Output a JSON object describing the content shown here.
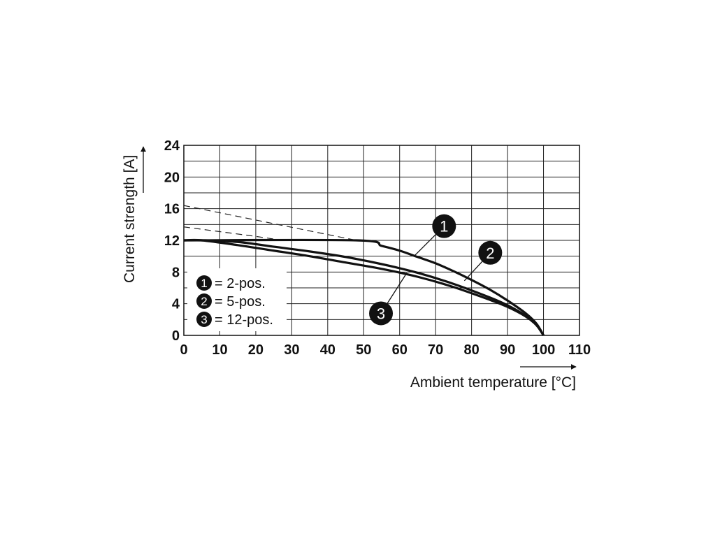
{
  "chart_data": {
    "type": "line",
    "xlabel": "Ambient temperature [°C]",
    "ylabel": "Current strength [A]",
    "xlim": [
      0,
      110
    ],
    "ylim": [
      0,
      24
    ],
    "xticks": [
      "0",
      "10",
      "20",
      "30",
      "40",
      "50",
      "60",
      "70",
      "80",
      "90",
      "100",
      "110"
    ],
    "yticks": [
      "0",
      "4",
      "8",
      "12",
      "16",
      "20",
      "24"
    ],
    "grid": true,
    "legend_position": "bottom-left",
    "series": [
      {
        "name": "2-pos.",
        "marker": "1",
        "x": [
          0,
          48,
          55,
          60,
          65,
          70,
          75,
          80,
          85,
          90,
          95,
          98,
          100
        ],
        "y": [
          12,
          12,
          11.3,
          10.7,
          9.9,
          9.1,
          8.1,
          7.0,
          5.8,
          4.4,
          2.8,
          1.5,
          0
        ]
      },
      {
        "name": "5-pos.",
        "marker": "2",
        "x": [
          0,
          6,
          15,
          25,
          35,
          45,
          55,
          65,
          75,
          85,
          90,
          95,
          98,
          100
        ],
        "y": [
          12,
          12,
          11.8,
          11.2,
          10.6,
          9.9,
          9.0,
          7.9,
          6.5,
          4.8,
          3.8,
          2.5,
          1.4,
          0
        ]
      },
      {
        "name": "12-pos.",
        "marker": "3",
        "x": [
          0,
          5,
          15,
          25,
          35,
          45,
          55,
          65,
          75,
          85,
          90,
          95,
          98,
          100
        ],
        "y": [
          12,
          12,
          11.4,
          10.7,
          10.0,
          9.2,
          8.4,
          7.4,
          6.1,
          4.5,
          3.6,
          2.4,
          1.3,
          0
        ]
      }
    ],
    "dashed_extrapolations": [
      {
        "x": [
          0,
          48
        ],
        "y": [
          16.4,
          12
        ]
      },
      {
        "x": [
          0,
          20,
          26
        ],
        "y": [
          13.7,
          12.5,
          12.1
        ]
      }
    ],
    "callouts": [
      {
        "marker": "1",
        "x": 64,
        "y": 10
      },
      {
        "marker": "2",
        "x": 78,
        "y": 6.9
      },
      {
        "marker": "3",
        "x": 62,
        "y": 7.9
      }
    ]
  }
}
